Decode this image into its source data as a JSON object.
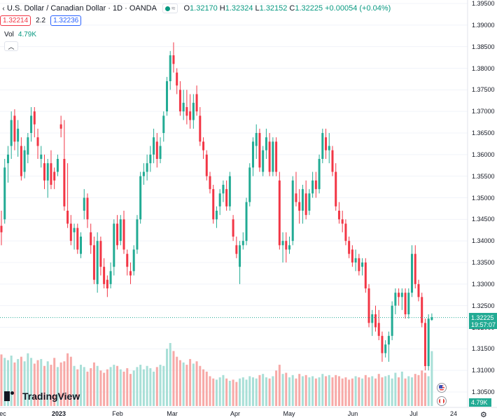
{
  "legend": {
    "title": "U.S. Dollar / Canadian Dollar · 1D · OANDA",
    "live_wave": "≈",
    "open_label": "O",
    "open": "1.32170",
    "high_label": "H",
    "high": "1.32324",
    "low_label": "L",
    "low": "1.32152",
    "close_label": "C",
    "close": "1.32225",
    "change": "+0.00054 (+0.04%)"
  },
  "bidask": {
    "bid": "1.32214",
    "spread": "2.2",
    "ask": "1.32236"
  },
  "volume": {
    "label": "Vol",
    "value": "4.79K",
    "badge": "4.79K"
  },
  "price_axis": {
    "labels": [
      "1.39500",
      "1.39000",
      "1.38500",
      "1.38000",
      "1.37500",
      "1.37000",
      "1.36500",
      "1.36000",
      "1.35500",
      "1.35000",
      "1.34500",
      "1.34000",
      "1.33500",
      "1.33000",
      "1.32500",
      "1.32000",
      "1.31500",
      "1.31000",
      "1.30500"
    ],
    "current_price": "1.32225",
    "countdown": "19:57:07"
  },
  "time_axis": {
    "labels": [
      "ec",
      "2023",
      "Feb",
      "Mar",
      "Apr",
      "May",
      "Jun",
      "Jul",
      "24"
    ],
    "year_label": "2023"
  },
  "branding": {
    "name": "TradingView"
  },
  "colors": {
    "up": "#22ab94",
    "down": "#f23645",
    "vol_up": "#a8dfd7",
    "vol_down": "#f7a9a7"
  },
  "icons": {
    "settings": "gear-icon",
    "collapse": "chevron-up-icon",
    "us_flag": "us-flag-icon",
    "ca_flag": "ca-flag-icon"
  },
  "chart_data": {
    "type": "candlestick",
    "symbol": "USDCAD",
    "timeframe": "1D",
    "y_range": [
      1.303,
      1.396
    ],
    "ohlc": [
      [
        1.3435,
        1.347,
        1.339,
        1.342
      ],
      [
        1.345,
        1.359,
        1.344,
        1.357
      ],
      [
        1.358,
        1.362,
        1.3535,
        1.36
      ],
      [
        1.362,
        1.37,
        1.359,
        1.368
      ],
      [
        1.369,
        1.3705,
        1.361,
        1.363
      ],
      [
        1.363,
        1.368,
        1.3595,
        1.366
      ],
      [
        1.362,
        1.364,
        1.354,
        1.355
      ],
      [
        1.356,
        1.362,
        1.3545,
        1.361
      ],
      [
        1.36,
        1.365,
        1.358,
        1.364
      ],
      [
        1.365,
        1.371,
        1.363,
        1.369
      ],
      [
        1.37,
        1.371,
        1.364,
        1.367
      ],
      [
        1.364,
        1.366,
        1.359,
        1.362
      ],
      [
        1.359,
        1.362,
        1.357,
        1.36
      ],
      [
        1.358,
        1.36,
        1.352,
        1.354
      ],
      [
        1.354,
        1.359,
        1.35,
        1.358
      ],
      [
        1.358,
        1.361,
        1.352,
        1.353
      ],
      [
        1.356,
        1.357,
        1.352,
        1.354
      ],
      [
        1.356,
        1.36,
        1.355,
        1.359
      ],
      [
        1.367,
        1.369,
        1.364,
        1.366
      ],
      [
        1.359,
        1.368,
        1.347,
        1.348
      ],
      [
        1.347,
        1.358,
        1.343,
        1.344
      ],
      [
        1.344,
        1.346,
        1.339,
        1.34
      ],
      [
        1.342,
        1.344,
        1.338,
        1.343
      ],
      [
        1.343,
        1.344,
        1.337,
        1.338
      ],
      [
        1.337,
        1.342,
        1.336,
        1.341
      ],
      [
        1.347,
        1.352,
        1.345,
        1.35
      ],
      [
        1.35,
        1.351,
        1.343,
        1.345
      ],
      [
        1.342,
        1.344,
        1.337,
        1.339
      ],
      [
        1.339,
        1.341,
        1.33,
        1.331
      ],
      [
        1.33,
        1.342,
        1.328,
        1.34
      ],
      [
        1.34,
        1.341,
        1.332,
        1.334
      ],
      [
        1.334,
        1.336,
        1.329,
        1.33
      ],
      [
        1.331,
        1.332,
        1.327,
        1.329
      ],
      [
        1.33,
        1.335,
        1.329,
        1.333
      ],
      [
        1.334,
        1.345,
        1.332,
        1.344
      ],
      [
        1.344,
        1.346,
        1.338,
        1.339
      ],
      [
        1.34,
        1.346,
        1.339,
        1.345
      ],
      [
        1.345,
        1.347,
        1.337,
        1.338
      ],
      [
        1.337,
        1.338,
        1.332,
        1.334
      ],
      [
        1.333,
        1.335,
        1.33,
        1.332
      ],
      [
        1.333,
        1.339,
        1.332,
        1.338
      ],
      [
        1.338,
        1.346,
        1.337,
        1.345
      ],
      [
        1.345,
        1.356,
        1.344,
        1.355
      ],
      [
        1.355,
        1.358,
        1.353,
        1.356
      ],
      [
        1.356,
        1.36,
        1.354,
        1.358
      ],
      [
        1.358,
        1.362,
        1.356,
        1.36
      ],
      [
        1.36,
        1.366,
        1.358,
        1.364
      ],
      [
        1.363,
        1.365,
        1.357,
        1.359
      ],
      [
        1.359,
        1.364,
        1.358,
        1.362
      ],
      [
        1.365,
        1.37,
        1.363,
        1.369
      ],
      [
        1.37,
        1.378,
        1.369,
        1.377
      ],
      [
        1.377,
        1.384,
        1.375,
        1.383
      ],
      [
        1.383,
        1.386,
        1.379,
        1.381
      ],
      [
        1.379,
        1.38,
        1.374,
        1.376
      ],
      [
        1.375,
        1.377,
        1.369,
        1.37
      ],
      [
        1.37,
        1.375,
        1.368,
        1.372
      ],
      [
        1.371,
        1.375,
        1.367,
        1.369
      ],
      [
        1.37,
        1.374,
        1.366,
        1.368
      ],
      [
        1.368,
        1.374,
        1.366,
        1.372
      ],
      [
        1.374,
        1.376,
        1.369,
        1.37
      ],
      [
        1.369,
        1.371,
        1.362,
        1.363
      ],
      [
        1.363,
        1.364,
        1.359,
        1.361
      ],
      [
        1.36,
        1.361,
        1.354,
        1.355
      ],
      [
        1.355,
        1.356,
        1.351,
        1.352
      ],
      [
        1.352,
        1.353,
        1.344,
        1.345
      ],
      [
        1.345,
        1.348,
        1.343,
        1.347
      ],
      [
        1.348,
        1.352,
        1.346,
        1.351
      ],
      [
        1.351,
        1.354,
        1.349,
        1.353
      ],
      [
        1.352,
        1.354,
        1.347,
        1.348
      ],
      [
        1.348,
        1.356,
        1.347,
        1.355
      ],
      [
        1.345,
        1.346,
        1.34,
        1.341
      ],
      [
        1.339,
        1.341,
        1.336,
        1.337
      ],
      [
        1.334,
        1.34,
        1.33,
        1.339
      ],
      [
        1.339,
        1.342,
        1.338,
        1.34
      ],
      [
        1.34,
        1.35,
        1.339,
        1.349
      ],
      [
        1.349,
        1.358,
        1.348,
        1.357
      ],
      [
        1.357,
        1.364,
        1.355,
        1.363
      ],
      [
        1.362,
        1.367,
        1.359,
        1.365
      ],
      [
        1.365,
        1.366,
        1.356,
        1.357
      ],
      [
        1.356,
        1.362,
        1.355,
        1.361
      ],
      [
        1.361,
        1.366,
        1.359,
        1.364
      ],
      [
        1.363,
        1.365,
        1.355,
        1.356
      ],
      [
        1.356,
        1.364,
        1.355,
        1.363
      ],
      [
        1.363,
        1.364,
        1.355,
        1.356
      ],
      [
        1.354,
        1.356,
        1.338,
        1.339
      ],
      [
        1.339,
        1.342,
        1.335,
        1.34
      ],
      [
        1.34,
        1.342,
        1.335,
        1.338
      ],
      [
        1.338,
        1.341,
        1.337,
        1.339
      ],
      [
        1.34,
        1.355,
        1.339,
        1.354
      ],
      [
        1.351,
        1.356,
        1.348,
        1.349
      ],
      [
        1.349,
        1.352,
        1.344,
        1.347
      ],
      [
        1.347,
        1.353,
        1.344,
        1.352
      ],
      [
        1.351,
        1.354,
        1.345,
        1.346
      ],
      [
        1.347,
        1.352,
        1.346,
        1.351
      ],
      [
        1.351,
        1.356,
        1.35,
        1.354
      ],
      [
        1.354,
        1.356,
        1.35,
        1.352
      ],
      [
        1.352,
        1.36,
        1.351,
        1.359
      ],
      [
        1.359,
        1.366,
        1.358,
        1.365
      ],
      [
        1.364,
        1.366,
        1.359,
        1.361
      ],
      [
        1.361,
        1.365,
        1.358,
        1.362
      ],
      [
        1.361,
        1.362,
        1.355,
        1.356
      ],
      [
        1.356,
        1.358,
        1.347,
        1.348
      ],
      [
        1.347,
        1.349,
        1.344,
        1.345
      ],
      [
        1.345,
        1.347,
        1.342,
        1.344
      ],
      [
        1.344,
        1.345,
        1.339,
        1.34
      ],
      [
        1.34,
        1.341,
        1.336,
        1.337
      ],
      [
        1.338,
        1.339,
        1.334,
        1.335
      ],
      [
        1.335,
        1.338,
        1.333,
        1.336
      ],
      [
        1.336,
        1.337,
        1.332,
        1.333
      ],
      [
        1.334,
        1.336,
        1.332,
        1.335
      ],
      [
        1.335,
        1.336,
        1.328,
        1.329
      ],
      [
        1.329,
        1.33,
        1.32,
        1.321
      ],
      [
        1.321,
        1.324,
        1.318,
        1.323
      ],
      [
        1.323,
        1.325,
        1.319,
        1.32
      ],
      [
        1.321,
        1.324,
        1.317,
        1.318
      ],
      [
        1.318,
        1.319,
        1.312,
        1.314
      ],
      [
        1.314,
        1.317,
        1.313,
        1.316
      ],
      [
        1.316,
        1.319,
        1.312,
        1.318
      ],
      [
        1.318,
        1.326,
        1.317,
        1.325
      ],
      [
        1.325,
        1.329,
        1.323,
        1.328
      ],
      [
        1.328,
        1.329,
        1.325,
        1.327
      ],
      [
        1.327,
        1.329,
        1.324,
        1.328
      ],
      [
        1.328,
        1.329,
        1.322,
        1.323
      ],
      [
        1.323,
        1.329,
        1.322,
        1.328
      ],
      [
        1.328,
        1.339,
        1.327,
        1.337
      ],
      [
        1.337,
        1.339,
        1.329,
        1.33
      ],
      [
        1.33,
        1.331,
        1.326,
        1.327
      ],
      [
        1.327,
        1.328,
        1.32,
        1.321
      ],
      [
        1.321,
        1.322,
        1.31,
        1.311
      ],
      [
        1.311,
        1.323,
        1.31,
        1.322
      ],
      [
        1.3217,
        1.3232,
        1.3215,
        1.3223
      ]
    ],
    "volume_k": [
      4.5,
      4.2,
      4.0,
      4.4,
      3.8,
      4.1,
      4.3,
      3.9,
      4.6,
      4.2,
      3.7,
      4.0,
      4.1,
      3.5,
      3.9,
      3.6,
      4.2,
      3.4,
      3.8,
      3.9,
      4.6,
      4.3,
      3.5,
      3.2,
      3.6,
      3.4,
      3.0,
      3.3,
      3.8,
      3.5,
      3.1,
      2.9,
      3.2,
      3.4,
      3.6,
      3.5,
      3.2,
      3.0,
      3.3,
      2.8,
      3.1,
      3.4,
      3.6,
      3.2,
      3.5,
      3.3,
      3.0,
      3.4,
      3.6,
      3.5,
      5.0,
      5.5,
      4.8,
      4.3,
      4.0,
      3.8,
      3.6,
      4.1,
      3.7,
      3.9,
      3.5,
      3.2,
      3.0,
      2.6,
      2.4,
      2.3,
      2.5,
      2.7,
      2.4,
      2.2,
      2.3,
      2.1,
      2.4,
      2.5,
      2.3,
      2.6,
      2.5,
      2.4,
      2.7,
      2.8,
      2.5,
      2.4,
      2.6,
      3.1,
      3.6,
      2.8,
      2.9,
      2.5,
      2.7,
      2.4,
      2.8,
      2.6,
      2.7,
      2.5,
      2.6,
      2.4,
      2.5,
      2.8,
      2.6,
      2.7,
      2.5,
      2.7,
      2.6,
      2.4,
      2.5,
      2.3,
      2.4,
      2.6,
      2.5,
      2.4,
      2.7,
      2.5,
      2.6,
      2.4,
      2.8,
      2.5,
      2.6,
      2.7,
      2.4,
      2.9,
      2.5,
      3.0,
      2.4,
      2.6,
      2.5,
      2.8,
      2.7,
      3.1,
      2.9,
      2.6,
      4.79
    ]
  }
}
